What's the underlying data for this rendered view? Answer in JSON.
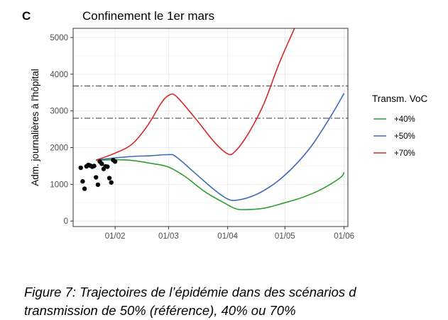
{
  "chart_data": {
    "type": "line",
    "panel_label": "C",
    "title": "Confinement le 1er mars",
    "xlabel": "",
    "ylabel": "Adm. journalières à l'hôpital",
    "x_tick_labels": [
      "01/02",
      "01/03",
      "01/04",
      "01/05",
      "01/06"
    ],
    "x_ticks": [
      "2021-02-01",
      "2021-03-01",
      "2021-04-01",
      "2021-05-01",
      "2021-06-01"
    ],
    "xlim": [
      "2021-01-10",
      "2021-06-03"
    ],
    "y_ticks": [
      0,
      1000,
      2000,
      3000,
      4000,
      5000
    ],
    "ylim": [
      -150,
      5250
    ],
    "grid": true,
    "legend": {
      "title": "Transm. VoC",
      "placement": "right",
      "entries": [
        "+40%",
        "+50%",
        "+70%"
      ]
    },
    "hlines": [
      2800,
      3680
    ],
    "series": [
      {
        "name": "+40%",
        "color": "#2ca02c",
        "points": [
          [
            "2021-01-22",
            1650
          ],
          [
            "2021-02-01",
            1670
          ],
          [
            "2021-02-10",
            1650
          ],
          [
            "2021-02-20",
            1570
          ],
          [
            "2021-03-01",
            1470
          ],
          [
            "2021-03-10",
            1200
          ],
          [
            "2021-03-20",
            800
          ],
          [
            "2021-03-30",
            500
          ],
          [
            "2021-04-05",
            340
          ],
          [
            "2021-04-10",
            310
          ],
          [
            "2021-04-20",
            350
          ],
          [
            "2021-05-01",
            500
          ],
          [
            "2021-05-10",
            640
          ],
          [
            "2021-05-20",
            860
          ],
          [
            "2021-05-30",
            1180
          ],
          [
            "2021-06-01",
            1330
          ]
        ]
      },
      {
        "name": "+50%",
        "color": "#3b6cb7",
        "points": [
          [
            "2021-01-22",
            1660
          ],
          [
            "2021-02-01",
            1720
          ],
          [
            "2021-02-10",
            1760
          ],
          [
            "2021-02-20",
            1780
          ],
          [
            "2021-03-01",
            1810
          ],
          [
            "2021-03-05",
            1750
          ],
          [
            "2021-03-15",
            1300
          ],
          [
            "2021-03-25",
            850
          ],
          [
            "2021-04-01",
            600
          ],
          [
            "2021-04-06",
            570
          ],
          [
            "2021-04-15",
            700
          ],
          [
            "2021-04-25",
            1000
          ],
          [
            "2021-05-05",
            1450
          ],
          [
            "2021-05-15",
            2050
          ],
          [
            "2021-05-25",
            2850
          ],
          [
            "2021-06-01",
            3480
          ]
        ]
      },
      {
        "name": "+70%",
        "color": "#d62728",
        "points": [
          [
            "2021-01-22",
            1660
          ],
          [
            "2021-02-01",
            1850
          ],
          [
            "2021-02-10",
            2100
          ],
          [
            "2021-02-18",
            2600
          ],
          [
            "2021-02-25",
            3200
          ],
          [
            "2021-03-01",
            3420
          ],
          [
            "2021-03-05",
            3400
          ],
          [
            "2021-03-15",
            2800
          ],
          [
            "2021-03-25",
            2150
          ],
          [
            "2021-04-01",
            1830
          ],
          [
            "2021-04-05",
            1900
          ],
          [
            "2021-04-12",
            2400
          ],
          [
            "2021-04-20",
            3200
          ],
          [
            "2021-04-28",
            4300
          ],
          [
            "2021-05-06",
            5250
          ]
        ]
      }
    ],
    "observed": [
      [
        "2021-01-14",
        1450
      ],
      [
        "2021-01-15",
        1080
      ],
      [
        "2021-01-16",
        880
      ],
      [
        "2021-01-17",
        1490
      ],
      [
        "2021-01-18",
        1530
      ],
      [
        "2021-01-19",
        1510
      ],
      [
        "2021-01-20",
        1480
      ],
      [
        "2021-01-21",
        1500
      ],
      [
        "2021-01-22",
        1190
      ],
      [
        "2021-01-23",
        990
      ],
      [
        "2021-01-24",
        1620
      ],
      [
        "2021-01-25",
        1560
      ],
      [
        "2021-01-26",
        1420
      ],
      [
        "2021-01-27",
        1490
      ],
      [
        "2021-01-28",
        1480
      ],
      [
        "2021-01-29",
        1170
      ],
      [
        "2021-01-30",
        1050
      ],
      [
        "2021-01-31",
        1660
      ],
      [
        "2021-02-01",
        1620
      ]
    ]
  },
  "caption": {
    "line1": "Figure 7: Trajectoires de l’épidémie dans des scénarios d",
    "line2": "transmission de 50% (référence), 40% ou 70%"
  }
}
